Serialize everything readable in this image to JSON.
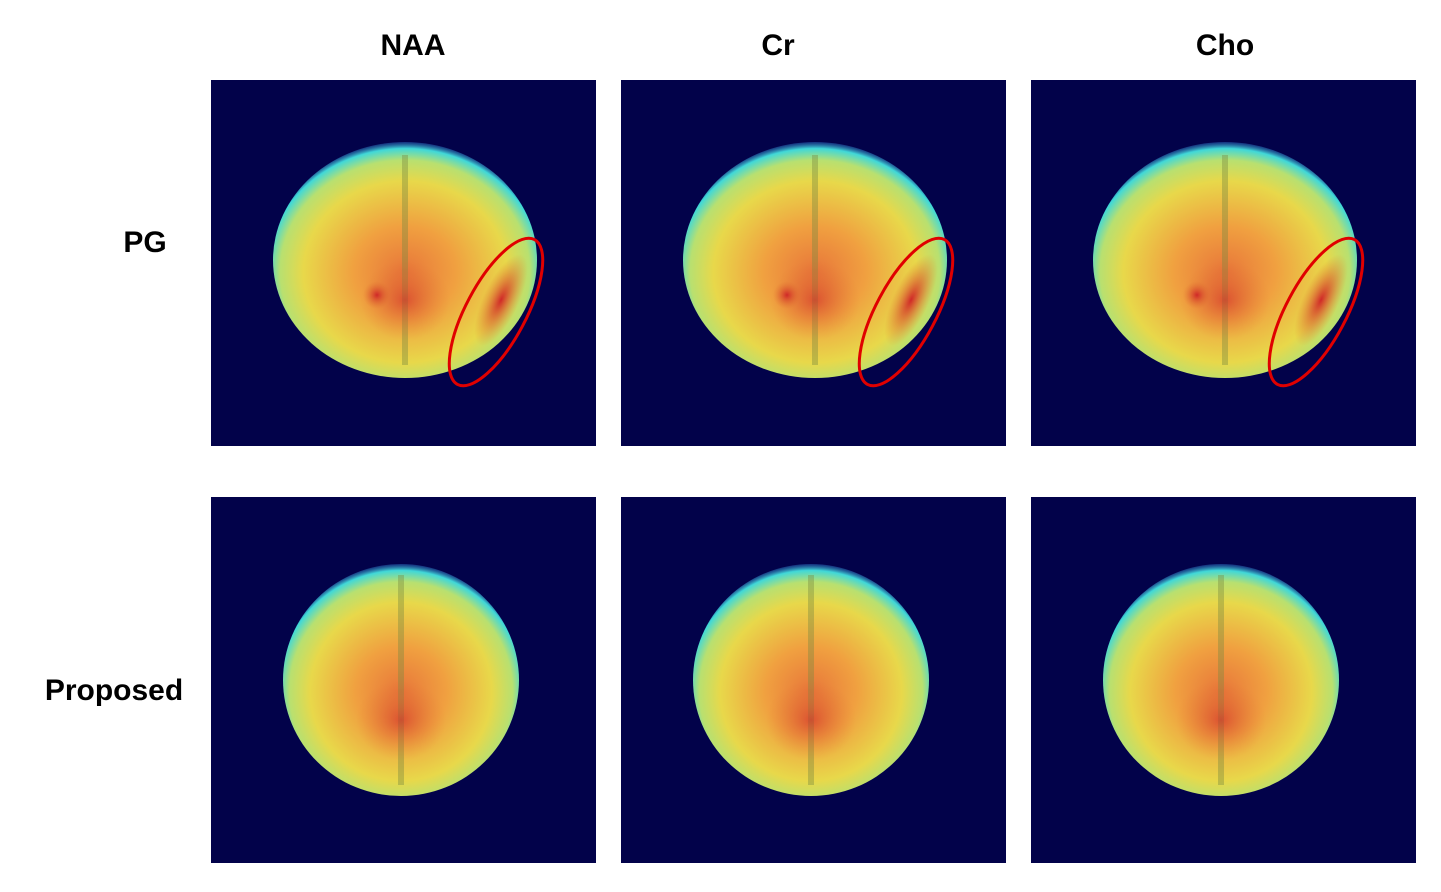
{
  "columns": [
    "NAA",
    "Cr",
    "Cho"
  ],
  "rows": [
    "PG",
    "Proposed"
  ]
}
